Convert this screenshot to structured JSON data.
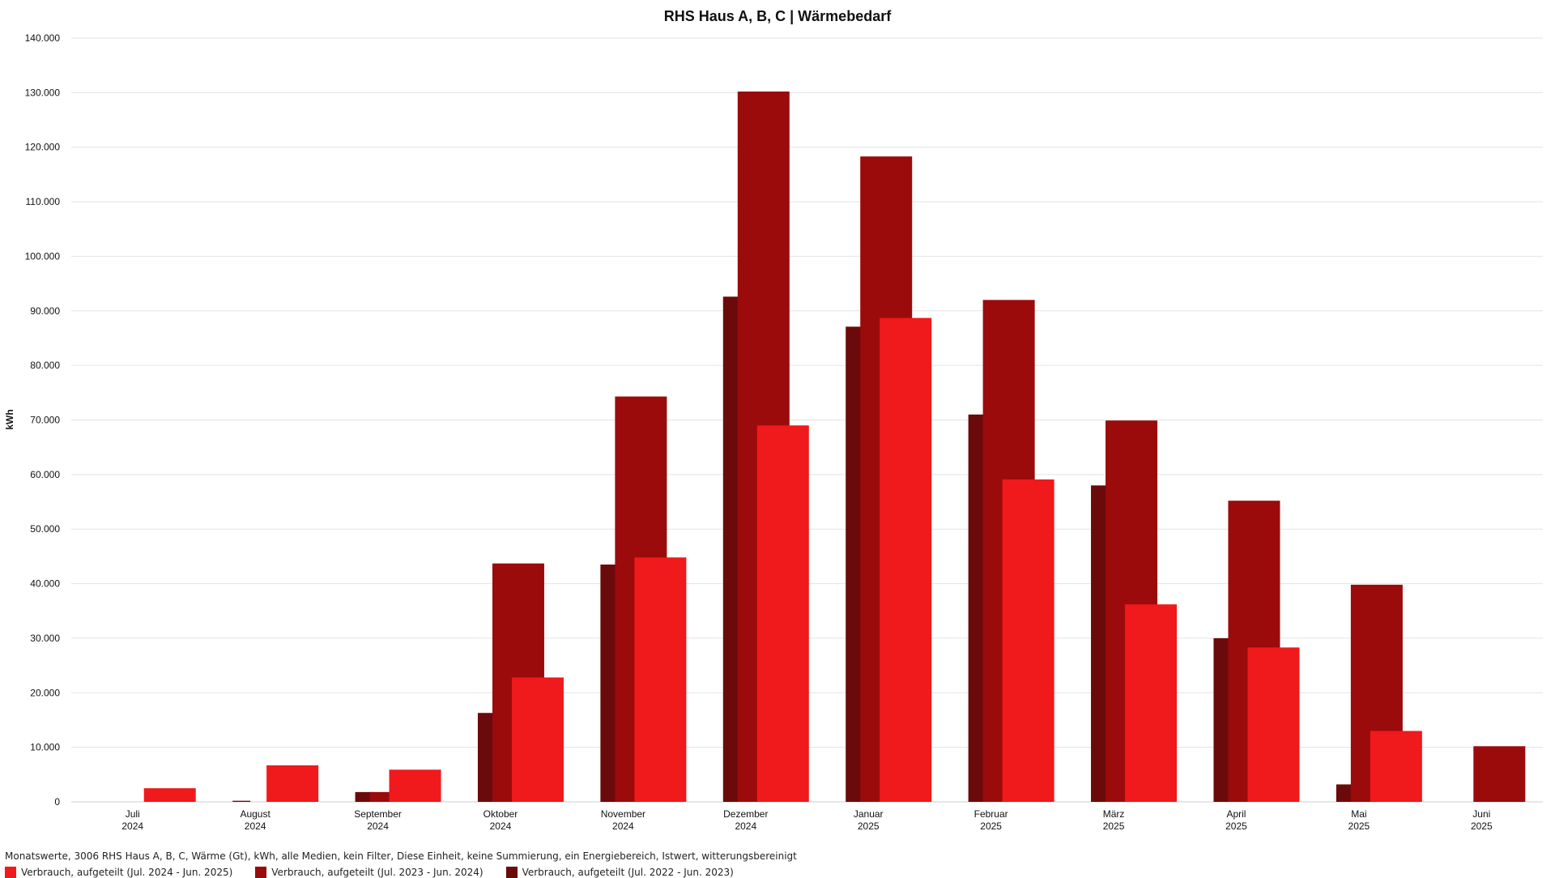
{
  "chart_data": {
    "type": "bar",
    "title": "RHS Haus A, B, C | Wärmebedarf",
    "ylabel": "kWh",
    "xlabel": "",
    "ylim": [
      0,
      140000
    ],
    "yticks": [
      0,
      10000,
      20000,
      30000,
      40000,
      50000,
      60000,
      70000,
      80000,
      90000,
      100000,
      110000,
      120000,
      130000,
      140000
    ],
    "ytick_labels": [
      "0",
      "10.000",
      "20.000",
      "30.000",
      "40.000",
      "50.000",
      "60.000",
      "70.000",
      "80.000",
      "90.000",
      "100.000",
      "110.000",
      "120.000",
      "130.000",
      "140.000"
    ],
    "categories": [
      {
        "month": "Juli",
        "year": "2024"
      },
      {
        "month": "August",
        "year": "2024"
      },
      {
        "month": "September",
        "year": "2024"
      },
      {
        "month": "Oktober",
        "year": "2024"
      },
      {
        "month": "November",
        "year": "2024"
      },
      {
        "month": "Dezember",
        "year": "2024"
      },
      {
        "month": "Januar",
        "year": "2025"
      },
      {
        "month": "Februar",
        "year": "2025"
      },
      {
        "month": "März",
        "year": "2025"
      },
      {
        "month": "April",
        "year": "2025"
      },
      {
        "month": "Mai",
        "year": "2025"
      },
      {
        "month": "Juni",
        "year": "2025"
      }
    ],
    "series": [
      {
        "name": "Verbrauch, aufgeteilt (Jul. 2022 - Jun. 2023)",
        "color": "#6b0a0a",
        "values": [
          0,
          200,
          1800,
          16300,
          43500,
          92600,
          87100,
          71000,
          58000,
          30000,
          3200,
          0
        ]
      },
      {
        "name": "Verbrauch, aufgeteilt (Jul. 2023 - Jun. 2024)",
        "color": "#9b0b0b",
        "values": [
          0,
          0,
          1800,
          43700,
          74300,
          130200,
          118300,
          92000,
          69900,
          55200,
          39800,
          10200
        ]
      },
      {
        "name": "Verbrauch, aufgeteilt (Jul. 2024 - Jun. 2025)",
        "color": "#f0191b",
        "values": [
          2500,
          6700,
          5900,
          22800,
          44800,
          69000,
          88700,
          59100,
          36200,
          28300,
          13000,
          0
        ]
      }
    ],
    "grid": true,
    "legend_position": "bottom-left"
  },
  "footer": {
    "subtitle": "Monatswerte, 3006 RHS Haus A, B, C, Wärme (Gt), kWh, alle Medien, kein Filter, Diese Einheit, keine Summierung, ein Energiebereich, Istwert, witterungsbereinigt",
    "legend": [
      {
        "label": "Verbrauch, aufgeteilt (Jul. 2024 - Jun. 2025)",
        "color": "#f0191b"
      },
      {
        "label": "Verbrauch, aufgeteilt (Jul. 2023 - Jun. 2024)",
        "color": "#9b0b0b"
      },
      {
        "label": "Verbrauch, aufgeteilt (Jul. 2022 - Jun. 2023)",
        "color": "#6b0a0a"
      }
    ]
  }
}
